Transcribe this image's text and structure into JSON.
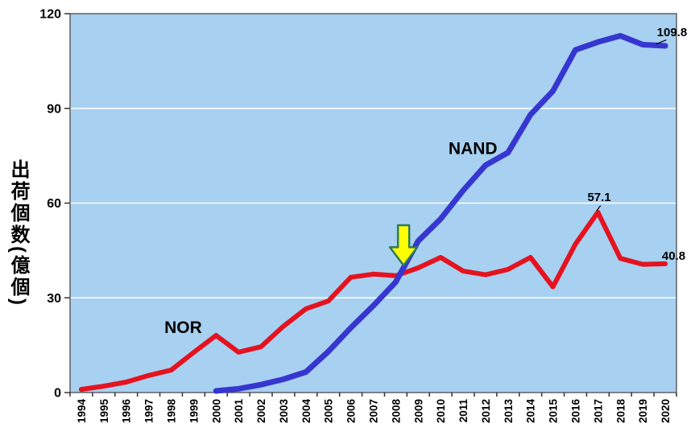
{
  "chart_data": {
    "type": "line",
    "title": "",
    "ylabel": "出荷個数(億個)",
    "x_years": [
      1994,
      1995,
      1996,
      1997,
      1998,
      1999,
      2000,
      2001,
      2002,
      2003,
      2004,
      2005,
      2006,
      2007,
      2008,
      2009,
      2010,
      2011,
      2012,
      2013,
      2014,
      2015,
      2016,
      2017,
      2018,
      2019,
      2020
    ],
    "ylim": [
      0,
      120
    ],
    "yticks": [
      0,
      30,
      60,
      90,
      120
    ],
    "grid": "horizontal",
    "legend_position": "inline-labels",
    "plot_bg": "#A8D0F1",
    "grid_color": "#FFFFFF",
    "axis_color": "#4A4A4A",
    "tick_color": "#333333",
    "series": [
      {
        "name": "NOR",
        "color": "#E4131F",
        "width": 6,
        "values": [
          1.0,
          2.0,
          3.3,
          5.4,
          7.1,
          12.7,
          18.1,
          12.8,
          14.5,
          21.0,
          26.5,
          29.0,
          36.5,
          37.5,
          37.0,
          39.5,
          42.8,
          38.5,
          37.3,
          39.0,
          42.8,
          33.5,
          47.0,
          57.1,
          42.5,
          40.6,
          40.8
        ]
      },
      {
        "name": "NAND",
        "color": "#3636D0",
        "width": 7,
        "values": [
          null,
          null,
          null,
          null,
          null,
          null,
          0.5,
          1.2,
          2.5,
          4.2,
          6.5,
          13.0,
          20.5,
          27.5,
          35.0,
          48.0,
          55.0,
          64.0,
          72.0,
          76.0,
          88.0,
          95.5,
          108.5,
          111.0,
          113.0,
          110.2,
          109.8
        ]
      }
    ],
    "labels": [
      {
        "id": "nor-series-label",
        "text": "NOR",
        "year": 1997.7,
        "value": 18.9,
        "anchor": "start",
        "size": 21
      },
      {
        "id": "nand-series-label",
        "text": "NAND",
        "year": 2010.35,
        "value": 75.5,
        "anchor": "start",
        "size": 21
      },
      {
        "id": "nor-peak-value",
        "text": "57.1",
        "year": 2017.06,
        "value": 60.7,
        "anchor": "middle",
        "size": 15
      },
      {
        "id": "nand-end-value",
        "text": "109.8",
        "year": 2020.3,
        "value": 112.9,
        "anchor": "middle",
        "size": 15
      },
      {
        "id": "nor-end-value",
        "text": "40.8",
        "year": 2019.85,
        "value": 42.1,
        "anchor": "start",
        "size": 15
      }
    ],
    "leaders": [
      {
        "id": "nor-peak-leader",
        "x1": 2017.12,
        "y1": 59.2,
        "x2": 2016.95,
        "y2": 57.6
      },
      {
        "id": "nand-end-leader",
        "x1": 2020.05,
        "y1": 111.7,
        "x2": 2019.6,
        "y2": 110.4
      }
    ],
    "arrow": {
      "id": "crossover-arrow",
      "year": 2008.35,
      "tip_value": 40.3,
      "top_value": 53.0,
      "fill": "#FFFF00",
      "stroke": "#2C7A5A"
    }
  }
}
